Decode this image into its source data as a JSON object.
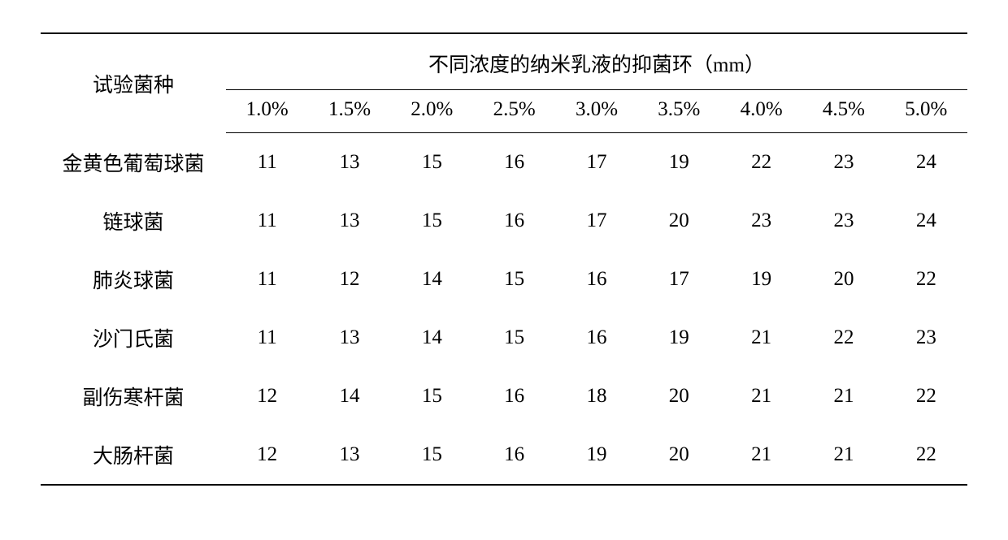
{
  "table": {
    "row_header_label": "试验菌种",
    "spanner_label": "不同浓度的纳米乳液的抑菌环（mm）",
    "concentrations": [
      "1.0%",
      "1.5%",
      "2.0%",
      "2.5%",
      "3.0%",
      "3.5%",
      "4.0%",
      "4.5%",
      "5.0%"
    ],
    "rows": [
      {
        "species": "金黄色葡萄球菌",
        "values": [
          11,
          13,
          15,
          16,
          17,
          19,
          22,
          23,
          24
        ]
      },
      {
        "species": "链球菌",
        "values": [
          11,
          13,
          15,
          16,
          17,
          20,
          23,
          23,
          24
        ]
      },
      {
        "species": "肺炎球菌",
        "values": [
          11,
          12,
          14,
          15,
          16,
          17,
          19,
          20,
          22
        ]
      },
      {
        "species": "沙门氏菌",
        "values": [
          11,
          13,
          14,
          15,
          16,
          19,
          21,
          22,
          23
        ]
      },
      {
        "species": "副伤寒杆菌",
        "values": [
          12,
          14,
          15,
          16,
          18,
          20,
          21,
          21,
          22
        ]
      },
      {
        "species": "大肠杆菌",
        "values": [
          12,
          13,
          15,
          16,
          19,
          20,
          21,
          21,
          22
        ]
      }
    ],
    "colors": {
      "background": "#ffffff",
      "text": "#000000",
      "rule": "#000000"
    },
    "font": {
      "cjk_family": "SimSun",
      "latin_family": "Times New Roman",
      "size_pt": 18
    }
  }
}
